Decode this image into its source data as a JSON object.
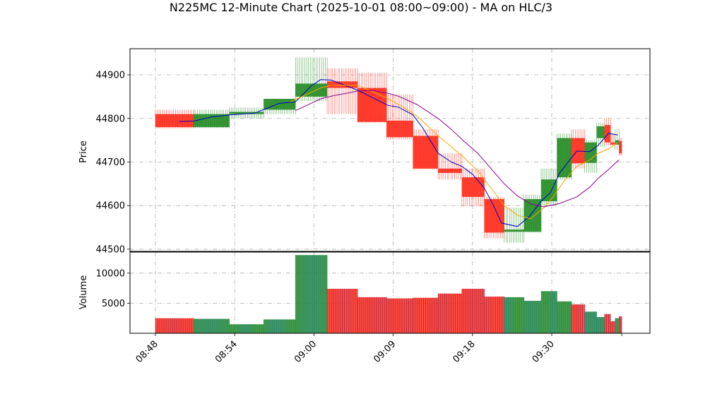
{
  "chart_data": {
    "type": "candlestick",
    "title": "N225MC 12-Minute Chart (2025-10-01 08:00~09:00) - MA on HLC/3",
    "price_panel": {
      "ylabel": "Price",
      "yticks": [
        44500,
        44600,
        44700,
        44800,
        44900
      ],
      "ylim": [
        44495,
        44960
      ]
    },
    "volume_panel": {
      "ylabel": "Volume",
      "yticks": [
        5000,
        10000
      ],
      "ylim": [
        0,
        13500
      ]
    },
    "xticks": [
      "08:48",
      "08:54",
      "09:00",
      "09:09",
      "09:18",
      "09:30"
    ],
    "grid": true,
    "colors": {
      "up": "#228B22",
      "down": "#FF2A1A",
      "ma_short": "#0000CC",
      "ma_mid": "#FFA500",
      "ma_long": "#8B008B",
      "vol_edge_up": "#1F77B4",
      "vol_edge_down": "#8B2252"
    },
    "candles": [
      {
        "x": 0.0,
        "w": 2.9,
        "o": 44810,
        "h": 44820,
        "l": 44777,
        "c": 44780,
        "vol": 2500
      },
      {
        "x": 2.9,
        "w": 2.7,
        "o": 44780,
        "h": 44820,
        "l": 44778,
        "c": 44810,
        "vol": 2400
      },
      {
        "x": 5.6,
        "w": 2.6,
        "o": 44810,
        "h": 44825,
        "l": 44800,
        "c": 44815,
        "vol": 1500
      },
      {
        "x": 8.2,
        "w": 2.4,
        "o": 44820,
        "h": 44845,
        "l": 44810,
        "c": 44845,
        "vol": 2300
      },
      {
        "x": 10.6,
        "w": 2.4,
        "o": 44850,
        "h": 44940,
        "l": 44840,
        "c": 44880,
        "vol": 13000
      },
      {
        "x": 13.0,
        "w": 2.3,
        "o": 44885,
        "h": 44915,
        "l": 44810,
        "c": 44870,
        "vol": 7400
      },
      {
        "x": 15.3,
        "w": 2.2,
        "o": 44870,
        "h": 44905,
        "l": 44790,
        "c": 44792,
        "vol": 6000
      },
      {
        "x": 17.5,
        "w": 2.0,
        "o": 44795,
        "h": 44855,
        "l": 44752,
        "c": 44757,
        "vol": 5800
      },
      {
        "x": 19.5,
        "w": 1.9,
        "o": 44760,
        "h": 44775,
        "l": 44683,
        "c": 44685,
        "vol": 5900
      },
      {
        "x": 21.4,
        "w": 1.8,
        "o": 44685,
        "h": 44720,
        "l": 44660,
        "c": 44675,
        "vol": 6600
      },
      {
        "x": 23.2,
        "w": 1.7,
        "o": 44665,
        "h": 44685,
        "l": 44598,
        "c": 44620,
        "vol": 7400
      },
      {
        "x": 24.9,
        "w": 1.5,
        "o": 44615,
        "h": 44620,
        "l": 44525,
        "c": 44538,
        "vol": 6100
      },
      {
        "x": 26.4,
        "w": 1.5,
        "o": 44540,
        "h": 44595,
        "l": 44515,
        "c": 44545,
        "vol": 6000
      },
      {
        "x": 27.9,
        "w": 1.3,
        "o": 44540,
        "h": 44625,
        "l": 44538,
        "c": 44615,
        "vol": 5400
      },
      {
        "x": 29.2,
        "w": 1.2,
        "o": 44610,
        "h": 44685,
        "l": 44600,
        "c": 44660,
        "vol": 7000
      },
      {
        "x": 30.4,
        "w": 1.1,
        "o": 44665,
        "h": 44765,
        "l": 44660,
        "c": 44755,
        "vol": 5300
      },
      {
        "x": 31.5,
        "w": 1.0,
        "o": 44755,
        "h": 44775,
        "l": 44685,
        "c": 44697,
        "vol": 4800
      },
      {
        "x": 32.5,
        "w": 0.9,
        "o": 44698,
        "h": 44750,
        "l": 44675,
        "c": 44745,
        "vol": 3600
      },
      {
        "x": 33.4,
        "w": 0.6,
        "o": 44755,
        "h": 44790,
        "l": 44735,
        "c": 44782,
        "vol": 2700
      },
      {
        "x": 34.0,
        "w": 0.45,
        "o": 44785,
        "h": 44800,
        "l": 44738,
        "c": 44745,
        "vol": 3200
      },
      {
        "x": 34.45,
        "w": 0.35,
        "o": 44745,
        "h": 44765,
        "l": 44738,
        "c": 44740,
        "vol": 2000
      },
      {
        "x": 34.8,
        "w": 0.3,
        "o": 44740,
        "h": 44775,
        "l": 44728,
        "c": 44750,
        "vol": 2500
      },
      {
        "x": 35.1,
        "w": 0.2,
        "o": 44748,
        "h": 44755,
        "l": 44715,
        "c": 44720,
        "vol": 2800
      }
    ],
    "ma_lines": [
      {
        "key": "ma_short",
        "points": [
          [
            1.8,
            44793
          ],
          [
            2.9,
            44794
          ],
          [
            4.2,
            44803
          ],
          [
            5.6,
            44808
          ],
          [
            7.5,
            44812
          ],
          [
            9.4,
            44835
          ],
          [
            10.6,
            44838
          ],
          [
            11.8,
            44875
          ],
          [
            12.5,
            44889
          ],
          [
            13.3,
            44888
          ],
          [
            14.0,
            44880
          ],
          [
            15.3,
            44865
          ],
          [
            16.8,
            44842
          ],
          [
            17.6,
            44830
          ],
          [
            18.4,
            44826
          ],
          [
            19.5,
            44808
          ],
          [
            20.2,
            44780
          ],
          [
            21.4,
            44720
          ],
          [
            22.4,
            44700
          ],
          [
            23.2,
            44690
          ],
          [
            24.0,
            44672
          ],
          [
            24.9,
            44640
          ],
          [
            25.6,
            44600
          ],
          [
            26.2,
            44560
          ],
          [
            27.4,
            44552
          ],
          [
            28.3,
            44575
          ],
          [
            29.2,
            44610
          ],
          [
            29.9,
            44630
          ],
          [
            30.6,
            44675
          ],
          [
            31.5,
            44710
          ],
          [
            31.9,
            44725
          ],
          [
            32.9,
            44724
          ],
          [
            33.5,
            44738
          ],
          [
            34.0,
            44755
          ],
          [
            34.3,
            44766
          ],
          [
            35.0,
            44762
          ]
        ]
      },
      {
        "key": "ma_mid",
        "points": [
          [
            10.2,
            44838
          ],
          [
            11.8,
            44860
          ],
          [
            12.5,
            44870
          ],
          [
            13.3,
            44876
          ],
          [
            15.3,
            44876
          ],
          [
            17.6,
            44846
          ],
          [
            18.8,
            44825
          ],
          [
            19.8,
            44805
          ],
          [
            21.4,
            44760
          ],
          [
            22.4,
            44735
          ],
          [
            23.2,
            44714
          ],
          [
            24.4,
            44680
          ],
          [
            25.4,
            44640
          ],
          [
            26.4,
            44600
          ],
          [
            27.4,
            44578
          ],
          [
            28.4,
            44570
          ],
          [
            29.4,
            44595
          ],
          [
            30.1,
            44620
          ],
          [
            30.9,
            44655
          ],
          [
            31.9,
            44690
          ],
          [
            32.9,
            44705
          ],
          [
            33.5,
            44720
          ],
          [
            34.3,
            44730
          ],
          [
            35.0,
            44745
          ]
        ]
      },
      {
        "key": "ma_long",
        "points": [
          [
            10.6,
            44818
          ],
          [
            11.8,
            44835
          ],
          [
            12.5,
            44845
          ],
          [
            13.3,
            44851
          ],
          [
            14.5,
            44858
          ],
          [
            15.3,
            44863
          ],
          [
            16.5,
            44864
          ],
          [
            17.6,
            44858
          ],
          [
            18.4,
            44851
          ],
          [
            19.8,
            44832
          ],
          [
            21.4,
            44800
          ],
          [
            22.4,
            44775
          ],
          [
            23.2,
            44752
          ],
          [
            24.4,
            44720
          ],
          [
            25.4,
            44685
          ],
          [
            26.4,
            44650
          ],
          [
            27.4,
            44622
          ],
          [
            28.4,
            44604
          ],
          [
            29.4,
            44597
          ],
          [
            30.6,
            44605
          ],
          [
            31.9,
            44620
          ],
          [
            32.9,
            44643
          ],
          [
            33.5,
            44662
          ],
          [
            34.3,
            44683
          ],
          [
            34.8,
            44697
          ],
          [
            35.1,
            44705
          ]
        ]
      }
    ]
  }
}
